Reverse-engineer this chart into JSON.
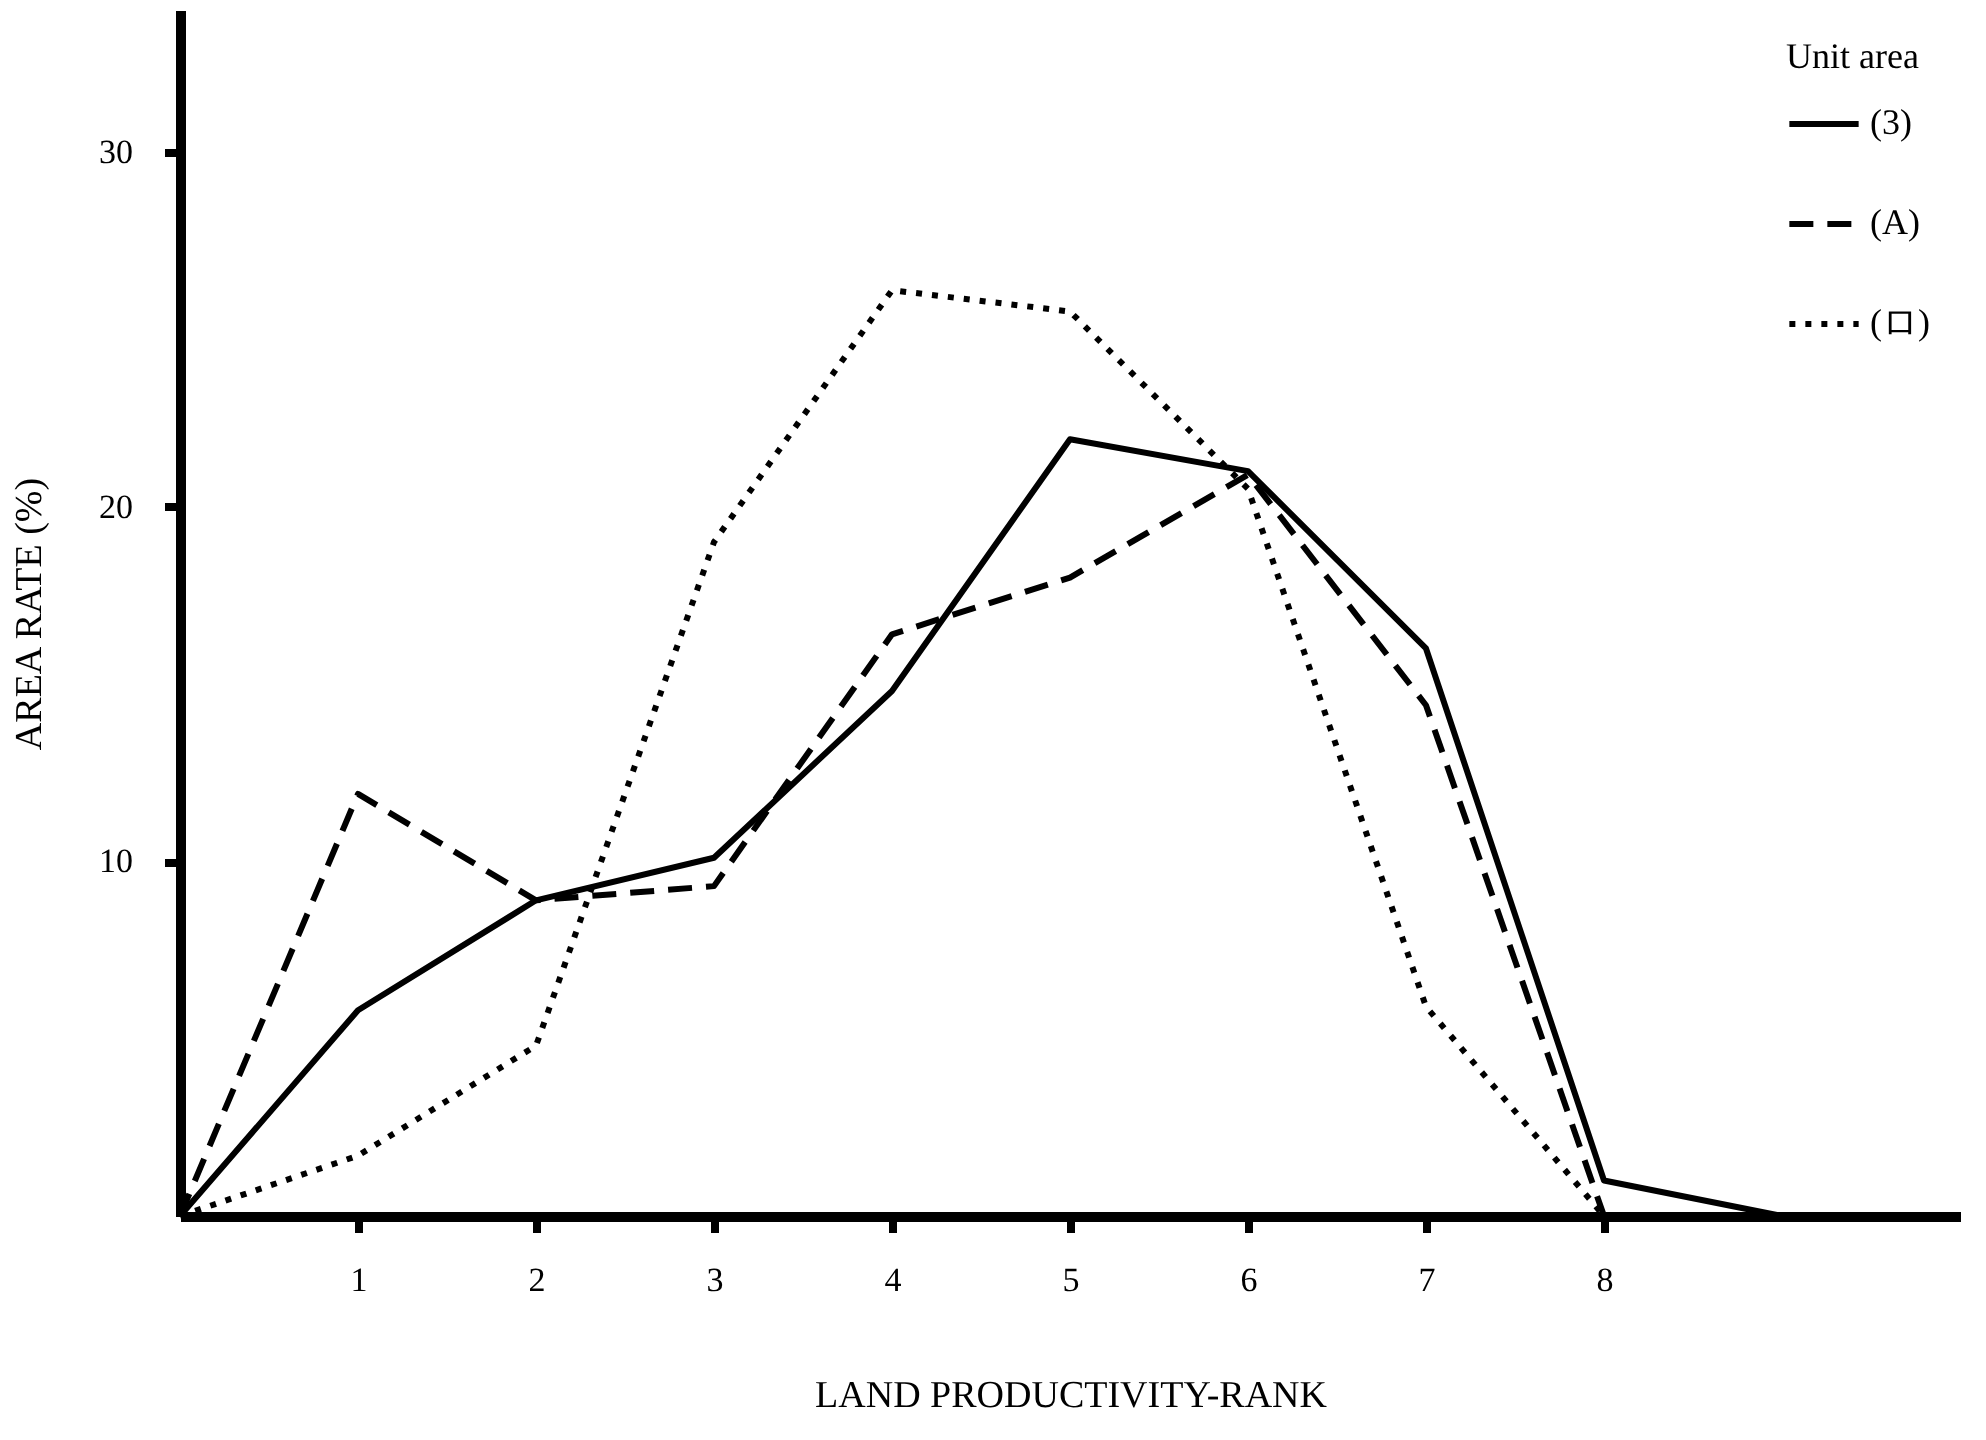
{
  "chart_data": {
    "type": "line",
    "xlabel": "LAND PRODUCTIVITY-RANK",
    "ylabel": "AREA RATE (%)",
    "legend_title": "Unit area",
    "legend": "top right",
    "grid": false,
    "marker": "none",
    "xlim": [
      0,
      10
    ],
    "ylim": [
      0,
      34
    ],
    "xticks": [
      1,
      2,
      3,
      4,
      5,
      6,
      7,
      8
    ],
    "yticks": [
      10,
      20,
      30
    ],
    "series": [
      {
        "name": "(3)",
        "color": "#000000",
        "line_style": "solid",
        "x": [
          0,
          1,
          2,
          3,
          4,
          5,
          6,
          7,
          8,
          9
        ],
        "values": [
          0,
          5.8,
          8.9,
          10.1,
          14.8,
          21.9,
          21.0,
          16.0,
          1.0,
          0
        ]
      },
      {
        "name": "(A)",
        "color": "#000000",
        "line_style": "dashed",
        "x": [
          0,
          1,
          2,
          3,
          4,
          5,
          6,
          7,
          8
        ],
        "values": [
          0,
          11.9,
          8.9,
          9.3,
          16.4,
          18.0,
          20.9,
          14.4,
          0
        ]
      },
      {
        "name": "(ロ)",
        "color": "#000000",
        "line_style": "dotted",
        "x": [
          0,
          1,
          2,
          3,
          4,
          5,
          6,
          7,
          8
        ],
        "values": [
          0,
          1.7,
          4.8,
          19.0,
          26.1,
          25.5,
          20.5,
          5.9,
          0
        ]
      }
    ]
  }
}
